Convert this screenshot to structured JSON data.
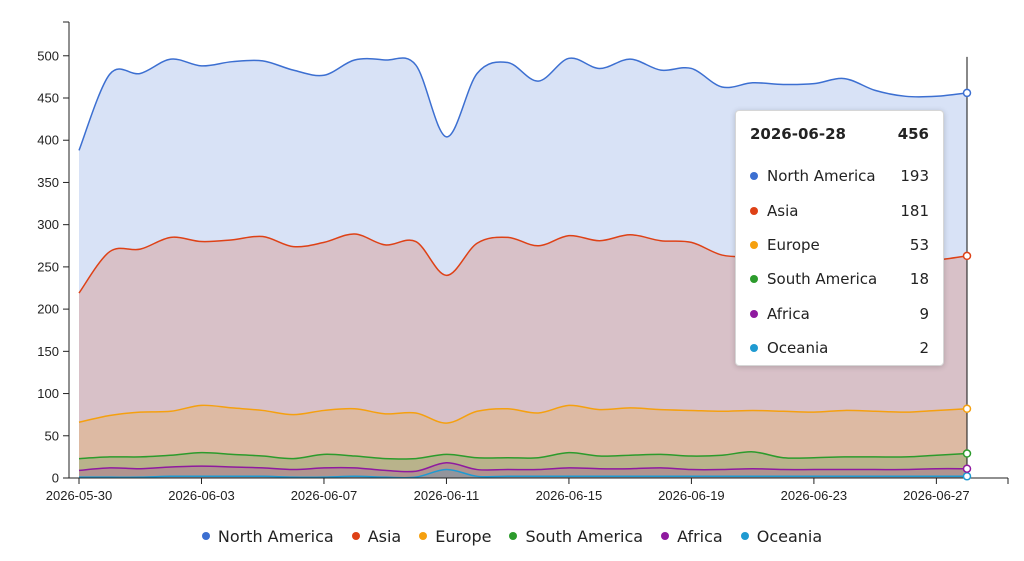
{
  "chart_data": {
    "type": "area",
    "stacked": true,
    "x": [
      "2026-05-30",
      "2026-05-31",
      "2026-06-01",
      "2026-06-02",
      "2026-06-03",
      "2026-06-04",
      "2026-06-05",
      "2026-06-06",
      "2026-06-07",
      "2026-06-08",
      "2026-06-09",
      "2026-06-10",
      "2026-06-11",
      "2026-06-12",
      "2026-06-13",
      "2026-06-14",
      "2026-06-15",
      "2026-06-16",
      "2026-06-17",
      "2026-06-18",
      "2026-06-19",
      "2026-06-20",
      "2026-06-21",
      "2026-06-22",
      "2026-06-23",
      "2026-06-24",
      "2026-06-25",
      "2026-06-26",
      "2026-06-27",
      "2026-06-28"
    ],
    "x_tick_labels": [
      "2026-05-30",
      "2026-06-03",
      "2026-06-07",
      "2026-06-11",
      "2026-06-15",
      "2026-06-19",
      "2026-06-23",
      "2026-06-27"
    ],
    "ylim": [
      0,
      540
    ],
    "y_ticks": [
      0,
      50,
      100,
      150,
      200,
      250,
      300,
      350,
      400,
      450,
      500
    ],
    "grid": false,
    "legend_position": "bottom",
    "series": [
      {
        "name": "Oceania",
        "color": "#1f9ad1",
        "values": [
          1,
          1,
          1,
          2,
          2,
          2,
          2,
          1,
          1,
          2,
          1,
          1,
          10,
          2,
          2,
          2,
          2,
          2,
          2,
          2,
          2,
          2,
          2,
          2,
          2,
          2,
          2,
          2,
          2,
          2
        ]
      },
      {
        "name": "Africa",
        "color": "#8f1a9f",
        "values": [
          8,
          11,
          10,
          11,
          12,
          11,
          10,
          9,
          11,
          10,
          8,
          7,
          8,
          8,
          8,
          8,
          10,
          9,
          9,
          10,
          8,
          8,
          9,
          8,
          8,
          8,
          8,
          8,
          9,
          9
        ]
      },
      {
        "name": "South America",
        "color": "#2c9b2c",
        "values": [
          14,
          13,
          14,
          14,
          16,
          15,
          14,
          13,
          16,
          14,
          14,
          15,
          10,
          14,
          14,
          14,
          18,
          15,
          16,
          16,
          16,
          17,
          20,
          14,
          14,
          15,
          15,
          15,
          16,
          18
        ]
      },
      {
        "name": "Europe",
        "color": "#f5a00f",
        "values": [
          43,
          49,
          53,
          52,
          56,
          55,
          54,
          52,
          52,
          56,
          53,
          54,
          37,
          55,
          58,
          53,
          56,
          55,
          56,
          53,
          54,
          52,
          49,
          55,
          54,
          55,
          54,
          53,
          53,
          53
        ]
      },
      {
        "name": "Asia",
        "color": "#de4116",
        "values": [
          153,
          194,
          193,
          206,
          194,
          199,
          206,
          199,
          199,
          207,
          200,
          203,
          175,
          199,
          203,
          198,
          201,
          200,
          205,
          200,
          199,
          185,
          182,
          183,
          180,
          183,
          183,
          178,
          178,
          181
        ]
      },
      {
        "name": "North America",
        "color": "#3c6fd1",
        "values": [
          169,
          210,
          208,
          211,
          208,
          211,
          208,
          209,
          198,
          206,
          219,
          209,
          164,
          201,
          207,
          195,
          210,
          204,
          208,
          202,
          206,
          199,
          206,
          204,
          209,
          210,
          197,
          196,
          194,
          193
        ]
      }
    ]
  },
  "tooltip": {
    "date": "2026-06-28",
    "total": "456",
    "rows": [
      {
        "name": "North America",
        "value": "193",
        "color": "#3c6fd1"
      },
      {
        "name": "Asia",
        "value": "181",
        "color": "#de4116"
      },
      {
        "name": "Europe",
        "value": "53",
        "color": "#f5a00f"
      },
      {
        "name": "South America",
        "value": "18",
        "color": "#2c9b2c"
      },
      {
        "name": "Africa",
        "value": "9",
        "color": "#8f1a9f"
      },
      {
        "name": "Oceania",
        "value": "2",
        "color": "#1f9ad1"
      }
    ]
  },
  "legend": [
    {
      "name": "North America",
      "color": "#3c6fd1"
    },
    {
      "name": "Asia",
      "color": "#de4116"
    },
    {
      "name": "Europe",
      "color": "#f5a00f"
    },
    {
      "name": "South America",
      "color": "#2c9b2c"
    },
    {
      "name": "Africa",
      "color": "#8f1a9f"
    },
    {
      "name": "Oceania",
      "color": "#1f9ad1"
    }
  ]
}
